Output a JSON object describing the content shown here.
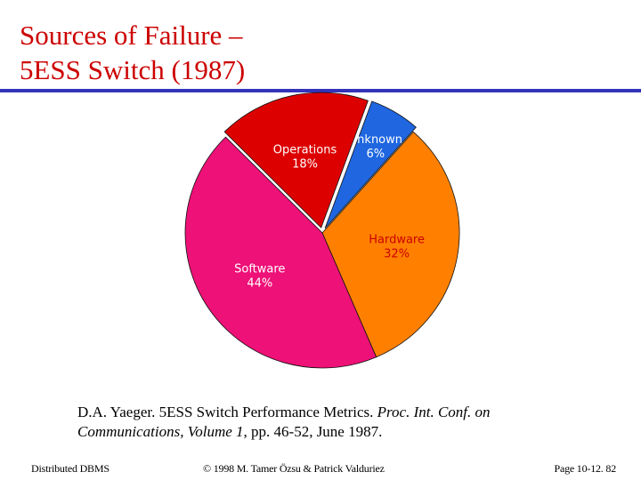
{
  "slide": {
    "title_line1": "Sources of Failure –",
    "title_line2": "5ESS Switch (1987)",
    "title_color": "#cc0000",
    "rule_color": "#3333bb"
  },
  "chart_data": {
    "type": "pie",
    "categories": [
      "Unknown",
      "Hardware",
      "Software",
      "Operations"
    ],
    "values": [
      6,
      32,
      44,
      18
    ],
    "value_labels": [
      "6%",
      "32%",
      "44%",
      "18%"
    ],
    "colors": [
      "#1f66e0",
      "#ff8000",
      "#ee1177",
      "#dd0000"
    ],
    "label_colors": [
      "#ffffff",
      "#cc0000",
      "#ffffff",
      "#ffffff"
    ],
    "title": "",
    "legend": "none"
  },
  "citation": {
    "authors": "D.A. Yaeger. 5ESS Switch Performance Metrics.",
    "proc": "Proc. Int. Conf. on Communications, Volume 1",
    "tail": ", pp. 46-52, June 1987."
  },
  "footer": {
    "left": "Distributed DBMS",
    "center": "© 1998 M. Tamer Özsu & Patrick Valduriez",
    "right": "Page 10-12. 82"
  }
}
